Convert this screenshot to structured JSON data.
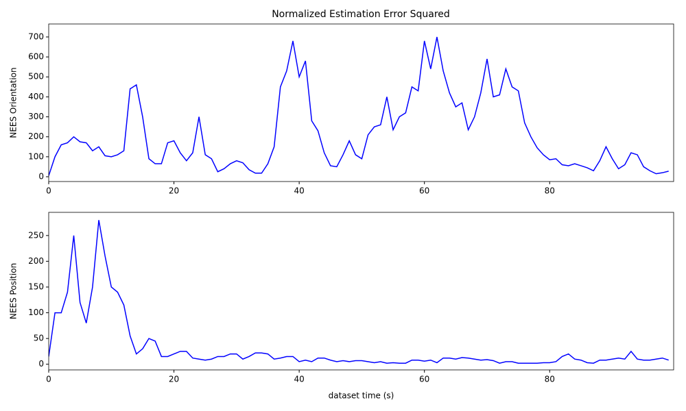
{
  "chart_data": [
    {
      "type": "line",
      "title": "Normalized Estimation Error Squared",
      "ylabel": "NEES Orientation",
      "color": "#0000ff",
      "x": [
        0,
        1,
        2,
        3,
        4,
        5,
        6,
        7,
        8,
        9,
        10,
        11,
        12,
        13,
        14,
        15,
        16,
        17,
        18,
        19,
        20,
        21,
        22,
        23,
        24,
        25,
        26,
        27,
        28,
        29,
        30,
        31,
        32,
        33,
        34,
        35,
        36,
        37,
        38,
        39,
        40,
        41,
        42,
        43,
        44,
        45,
        46,
        47,
        48,
        49,
        50,
        51,
        52,
        53,
        54,
        55,
        56,
        57,
        58,
        59,
        60,
        61,
        62,
        63,
        64,
        65,
        66,
        67,
        68,
        69,
        70,
        71,
        72,
        73,
        74,
        75,
        76,
        77,
        78,
        79,
        80,
        81,
        82,
        83,
        84,
        85,
        86,
        87,
        88,
        89,
        90,
        91,
        92,
        93,
        94,
        95,
        96,
        97,
        98,
        99
      ],
      "values": [
        5,
        100,
        160,
        170,
        200,
        175,
        170,
        130,
        150,
        105,
        100,
        110,
        130,
        440,
        460,
        300,
        90,
        65,
        65,
        170,
        180,
        120,
        80,
        120,
        300,
        110,
        90,
        25,
        40,
        65,
        80,
        70,
        35,
        18,
        18,
        65,
        150,
        450,
        530,
        680,
        500,
        580,
        280,
        230,
        120,
        55,
        50,
        110,
        180,
        110,
        90,
        210,
        250,
        260,
        400,
        235,
        300,
        320,
        450,
        430,
        680,
        540,
        700,
        530,
        420,
        350,
        370,
        235,
        300,
        420,
        590,
        400,
        410,
        540,
        450,
        430,
        270,
        200,
        145,
        110,
        85,
        90,
        60,
        55,
        65,
        55,
        45,
        30,
        80,
        150,
        90,
        40,
        60,
        120,
        110,
        50,
        30,
        15,
        20,
        28
      ],
      "xlim": [
        0,
        99.8
      ],
      "ylim": [
        -24,
        765
      ],
      "xticks": [
        0,
        20,
        40,
        60,
        80
      ],
      "yticks": [
        0,
        100,
        200,
        300,
        400,
        500,
        600,
        700
      ]
    },
    {
      "type": "line",
      "ylabel": "NEES Position",
      "xlabel": "dataset time (s)",
      "color": "#0000ff",
      "x": [
        0,
        1,
        2,
        3,
        4,
        5,
        6,
        7,
        8,
        9,
        10,
        11,
        12,
        13,
        14,
        15,
        16,
        17,
        18,
        19,
        20,
        21,
        22,
        23,
        24,
        25,
        26,
        27,
        28,
        29,
        30,
        31,
        32,
        33,
        34,
        35,
        36,
        37,
        38,
        39,
        40,
        41,
        42,
        43,
        44,
        45,
        46,
        47,
        48,
        49,
        50,
        51,
        52,
        53,
        54,
        55,
        56,
        57,
        58,
        59,
        60,
        61,
        62,
        63,
        64,
        65,
        66,
        67,
        68,
        69,
        70,
        71,
        72,
        73,
        74,
        75,
        76,
        77,
        78,
        79,
        80,
        81,
        82,
        83,
        84,
        85,
        86,
        87,
        88,
        89,
        90,
        91,
        92,
        93,
        94,
        95,
        96,
        97,
        98,
        99
      ],
      "values": [
        15,
        100,
        100,
        140,
        250,
        120,
        80,
        150,
        280,
        210,
        150,
        140,
        115,
        55,
        20,
        30,
        50,
        45,
        15,
        15,
        20,
        25,
        25,
        12,
        10,
        8,
        10,
        15,
        15,
        20,
        20,
        10,
        15,
        22,
        22,
        20,
        10,
        12,
        15,
        15,
        5,
        8,
        5,
        12,
        12,
        8,
        5,
        7,
        5,
        7,
        7,
        5,
        3,
        5,
        2,
        3,
        2,
        2,
        8,
        8,
        6,
        8,
        3,
        12,
        12,
        10,
        13,
        12,
        10,
        8,
        9,
        7,
        2,
        5,
        5,
        2,
        2,
        2,
        2,
        3,
        3,
        5,
        15,
        20,
        10,
        8,
        3,
        2,
        8,
        8,
        10,
        12,
        10,
        25,
        10,
        8,
        8,
        10,
        12,
        8
      ],
      "xlim": [
        0,
        99.8
      ],
      "ylim": [
        -11,
        295
      ],
      "xticks": [
        0,
        20,
        40,
        60,
        80
      ],
      "yticks": [
        0,
        50,
        100,
        150,
        200,
        250
      ]
    }
  ]
}
